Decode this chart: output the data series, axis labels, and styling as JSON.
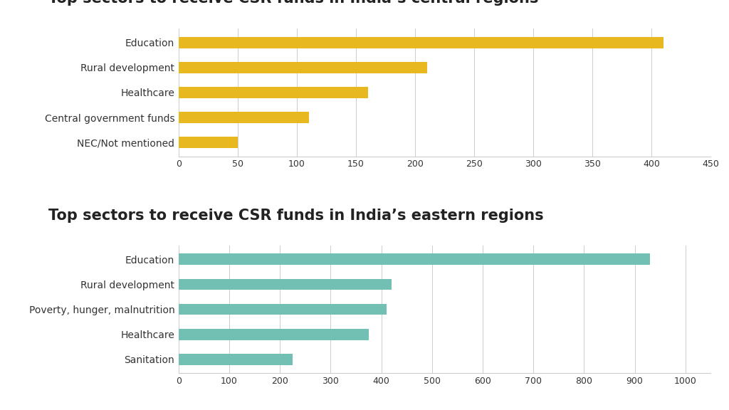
{
  "chart1": {
    "title": "Top sectors to receive CSR funds in India’s central regions",
    "categories": [
      "Education",
      "Rural development",
      "Healthcare",
      "Central government funds",
      "NEC/Not mentioned"
    ],
    "values": [
      410,
      210,
      160,
      110,
      50
    ],
    "color": "#E8B820",
    "xlim": [
      0,
      450
    ],
    "xticks": [
      0,
      50,
      100,
      150,
      200,
      250,
      300,
      350,
      400,
      450
    ]
  },
  "chart2": {
    "title": "Top sectors to receive CSR funds in India’s eastern regions",
    "categories": [
      "Education",
      "Rural development",
      "Poverty, hunger, malnutrition",
      "Healthcare",
      "Sanitation"
    ],
    "values": [
      930,
      420,
      410,
      375,
      225
    ],
    "color": "#72BFB4",
    "xlim": [
      0,
      1050
    ],
    "xticks": [
      0,
      100,
      200,
      300,
      400,
      500,
      600,
      700,
      800,
      900,
      1000
    ]
  },
  "background_color": "#FFFFFF",
  "title_fontsize": 15,
  "label_fontsize": 10,
  "tick_fontsize": 9,
  "title_color": "#222222",
  "label_color": "#333333",
  "bar_height": 0.45
}
